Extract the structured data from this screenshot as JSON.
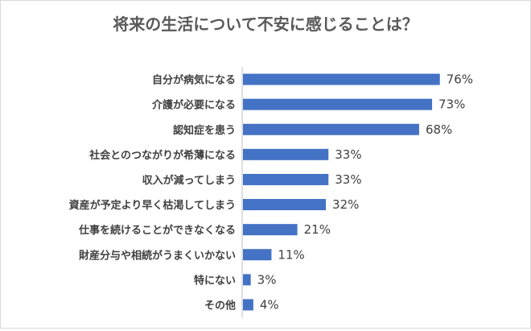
{
  "chart_data": {
    "type": "bar",
    "orientation": "horizontal",
    "title": "将来の生活について不安に感じることは？",
    "categories": [
      "自分が病気になる",
      "介護が必要になる",
      "認知症を患う",
      "社会とのつながりが希薄になる",
      "収入が減ってしまう",
      "資産が予定より早く枯渇してしまう",
      "仕事を続けることができなくなる",
      "財産分与や相続がうまくいかない",
      "特にない",
      "その他"
    ],
    "values": [
      76,
      73,
      68,
      33,
      33,
      32,
      21,
      11,
      3,
      4
    ],
    "value_labels": [
      "76%",
      "73%",
      "68%",
      "33%",
      "33%",
      "32%",
      "21%",
      "11%",
      "3%",
      "4%"
    ],
    "unit": "%",
    "bar_color": "#4472c4",
    "grid": false,
    "legend": "none"
  }
}
